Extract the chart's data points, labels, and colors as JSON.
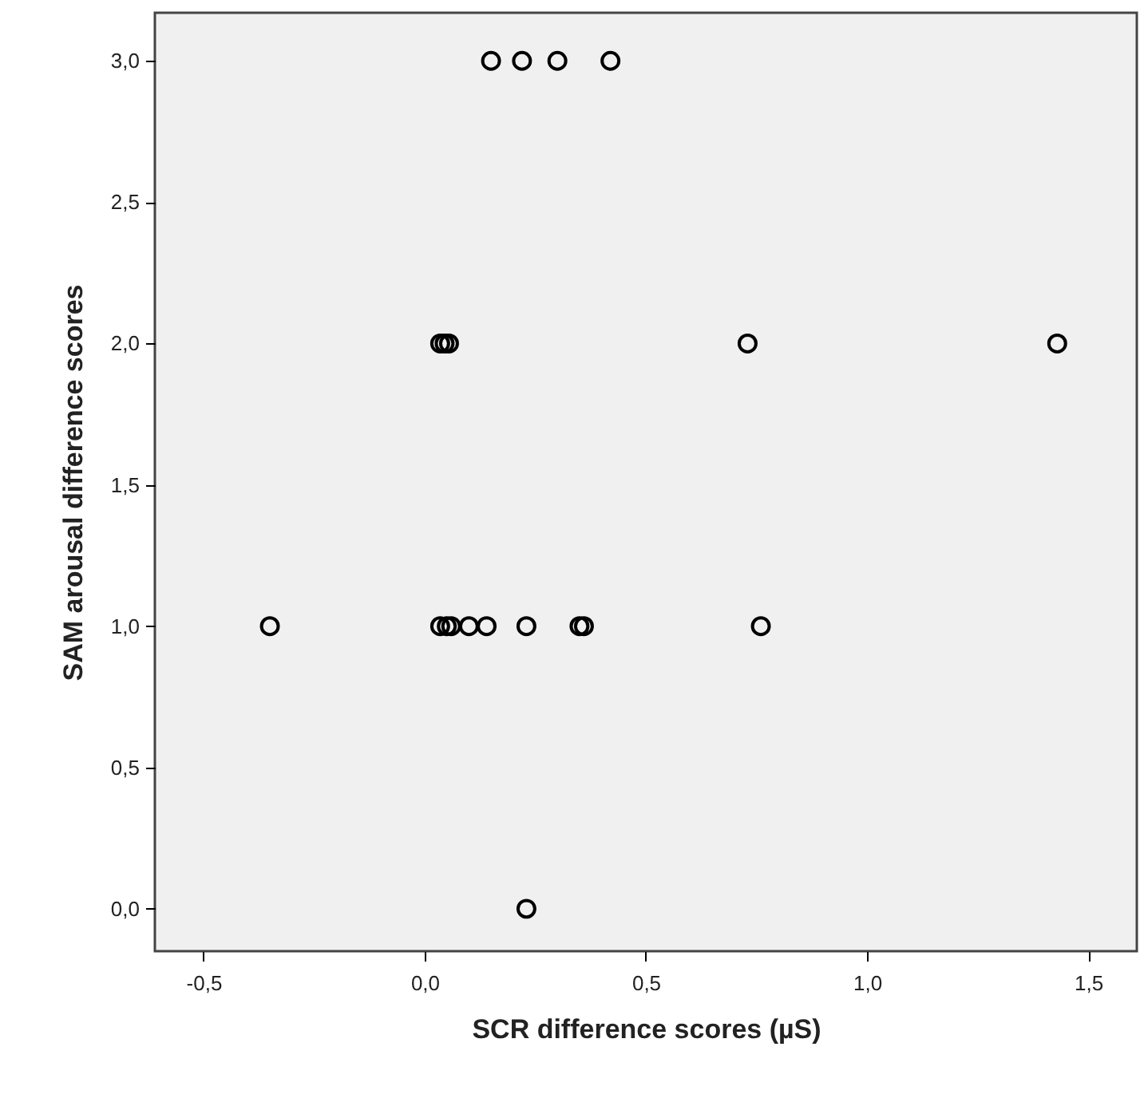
{
  "chart_data": {
    "type": "scatter",
    "xlabel": "SCR difference scores (µS)",
    "ylabel": "SAM arousal difference scores",
    "xlim": [
      -0.61,
      1.61
    ],
    "ylim": [
      -0.15,
      3.17
    ],
    "xticks": [
      {
        "value": -0.5,
        "label": "-0,5"
      },
      {
        "value": 0,
        "label": "0,0"
      },
      {
        "value": 0.5,
        "label": "0,5"
      },
      {
        "value": 1,
        "label": "1,0"
      },
      {
        "value": 1.5,
        "label": "1,5"
      }
    ],
    "yticks": [
      {
        "value": 0,
        "label": "0,0"
      },
      {
        "value": 0.5,
        "label": "0,5"
      },
      {
        "value": 1,
        "label": "1,0"
      },
      {
        "value": 1.5,
        "label": "1,5"
      },
      {
        "value": 2,
        "label": "2,0"
      },
      {
        "value": 2.5,
        "label": "2,5"
      },
      {
        "value": 3,
        "label": "3,0"
      }
    ],
    "grid": false,
    "marker": "circle",
    "series": [
      {
        "color": "#000000",
        "x": [
          0.15,
          0.22,
          0.3,
          0.42,
          0.035,
          0.045,
          0.055,
          0.73,
          1.43,
          -0.35,
          0.035,
          0.05,
          0.06,
          0.1,
          0.14,
          0.23,
          0.35,
          0.36,
          0.76,
          0.23
        ],
        "values": [
          3,
          3,
          3,
          3,
          2,
          2,
          2,
          2,
          2,
          1,
          1,
          1,
          1,
          1,
          1,
          1,
          1,
          1,
          1,
          0
        ]
      }
    ]
  }
}
